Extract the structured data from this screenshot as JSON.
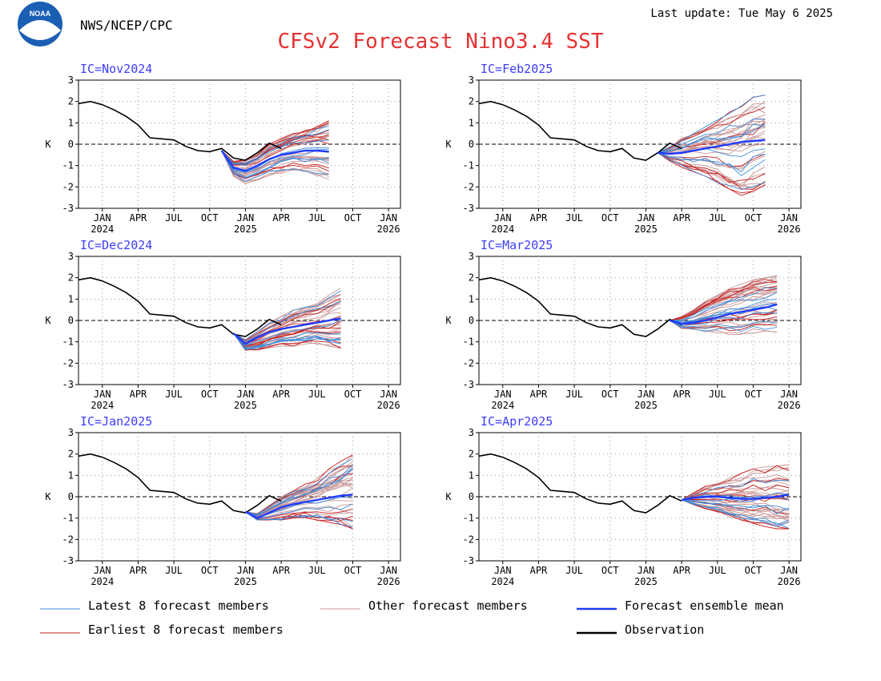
{
  "header": {
    "agency": "NWS/NCEP/CPC",
    "last_update": "Last update: Tue May 6 2025",
    "title": "CFSv2 Forecast Nino3.4 SST",
    "logo_text": "NOAA"
  },
  "colors": {
    "title": "#e63232",
    "panel_label": "#3c3cff",
    "observation": "#000000",
    "mean": "#1e3cff",
    "latest": "#3c8cdc",
    "earliest": "#c81e1e",
    "other": "#c89696"
  },
  "legend": {
    "items": [
      {
        "key": "latest",
        "label": "Latest 8 forecast members"
      },
      {
        "key": "other",
        "label": "Other forecast members"
      },
      {
        "key": "mean",
        "label": "Forecast ensemble mean"
      },
      {
        "key": "earliest",
        "label": "Earliest 8 forecast members"
      },
      {
        "key": "observation",
        "label": "Observation"
      }
    ]
  },
  "chart_data": {
    "type": "line",
    "ylabel": "K",
    "ylim": [
      -3,
      3
    ],
    "yticks": [
      -3,
      -2,
      -1,
      0,
      1,
      2,
      3
    ],
    "x_month_ticks": [
      "JAN",
      "APR",
      "JUL",
      "OCT",
      "JAN",
      "APR",
      "JUL",
      "OCT",
      "JAN"
    ],
    "x_year_labels": [
      "2024",
      "2025",
      "2026"
    ],
    "x_range": [
      "2023-11",
      "2026-02"
    ],
    "grid": true,
    "zero_line": "dashed",
    "observation": {
      "x": [
        "2023-11",
        "2023-12",
        "2024-01",
        "2024-02",
        "2024-03",
        "2024-04",
        "2024-05",
        "2024-06",
        "2024-07",
        "2024-08",
        "2024-09",
        "2024-10",
        "2024-11",
        "2024-12",
        "2025-01",
        "2025-02",
        "2025-03",
        "2025-04"
      ],
      "values": [
        1.9,
        2.0,
        1.85,
        1.6,
        1.3,
        0.9,
        0.3,
        0.25,
        0.2,
        -0.1,
        -0.3,
        -0.35,
        -0.2,
        -0.65,
        -0.75,
        -0.4,
        0.05,
        -0.2
      ]
    },
    "panels": [
      {
        "label": "IC=Nov2024",
        "ic": "2024-11",
        "mean": [
          -0.3,
          -1.1,
          -1.25,
          -1.0,
          -0.7,
          -0.5,
          -0.4,
          -0.3,
          -0.3,
          -0.35
        ],
        "spread_low": [
          -0.3,
          -1.5,
          -1.9,
          -1.7,
          -1.5,
          -1.4,
          -1.3,
          -1.4,
          -1.5,
          -1.7
        ],
        "spread_high": [
          -0.3,
          -0.8,
          -0.7,
          -0.4,
          0.0,
          0.3,
          0.5,
          0.7,
          0.9,
          1.1
        ]
      },
      {
        "label": "IC=Feb2025",
        "ic": "2025-02",
        "mean": [
          -0.4,
          -0.45,
          -0.4,
          -0.3,
          -0.2,
          -0.1,
          0.0,
          0.1,
          0.15,
          0.2
        ],
        "spread_low": [
          -0.4,
          -0.8,
          -1.1,
          -1.3,
          -1.5,
          -1.8,
          -2.1,
          -2.4,
          -2.2,
          -1.9
        ],
        "spread_high": [
          -0.4,
          -0.1,
          0.3,
          0.6,
          0.9,
          1.2,
          1.5,
          1.8,
          2.2,
          2.3
        ]
      },
      {
        "label": "IC=Dec2024",
        "ic": "2024-12",
        "mean": [
          -0.6,
          -1.1,
          -0.8,
          -0.55,
          -0.4,
          -0.3,
          -0.2,
          -0.1,
          0.0,
          0.1
        ],
        "spread_low": [
          -0.6,
          -1.4,
          -1.4,
          -1.3,
          -1.2,
          -1.2,
          -1.1,
          -1.1,
          -1.2,
          -1.3
        ],
        "spread_high": [
          -0.6,
          -0.9,
          -0.5,
          -0.1,
          0.2,
          0.5,
          0.7,
          0.9,
          1.2,
          1.55
        ]
      },
      {
        "label": "IC=Mar2025",
        "ic": "2025-03",
        "mean": [
          0.0,
          -0.15,
          -0.1,
          0.0,
          0.15,
          0.3,
          0.4,
          0.5,
          0.6,
          0.75
        ],
        "spread_low": [
          0.0,
          -0.4,
          -0.5,
          -0.6,
          -0.6,
          -0.7,
          -0.7,
          -0.6,
          -0.6,
          -0.6
        ],
        "spread_high": [
          0.0,
          0.2,
          0.5,
          0.9,
          1.2,
          1.5,
          1.7,
          1.9,
          2.0,
          2.1
        ]
      },
      {
        "label": "IC=Jan2025",
        "ic": "2025-01",
        "mean": [
          -0.7,
          -1.0,
          -0.75,
          -0.5,
          -0.35,
          -0.25,
          -0.15,
          -0.05,
          0.05,
          0.1
        ],
        "spread_low": [
          -0.7,
          -1.1,
          -1.1,
          -1.1,
          -1.0,
          -1.0,
          -1.1,
          -1.2,
          -1.3,
          -1.5
        ],
        "spread_high": [
          -0.7,
          -0.8,
          -0.4,
          0.0,
          0.3,
          0.6,
          0.9,
          1.3,
          1.7,
          2.1
        ]
      },
      {
        "label": "IC=Apr2025",
        "ic": "2025-04",
        "mean": [
          -0.15,
          -0.05,
          0.0,
          0.0,
          -0.05,
          -0.1,
          -0.1,
          -0.05,
          0.0,
          0.1
        ],
        "spread_low": [
          -0.15,
          -0.4,
          -0.6,
          -0.8,
          -1.0,
          -1.2,
          -1.3,
          -1.4,
          -1.5,
          -1.5
        ],
        "spread_high": [
          -0.15,
          0.2,
          0.5,
          0.7,
          0.9,
          1.1,
          1.3,
          1.4,
          1.5,
          1.5
        ]
      }
    ]
  }
}
